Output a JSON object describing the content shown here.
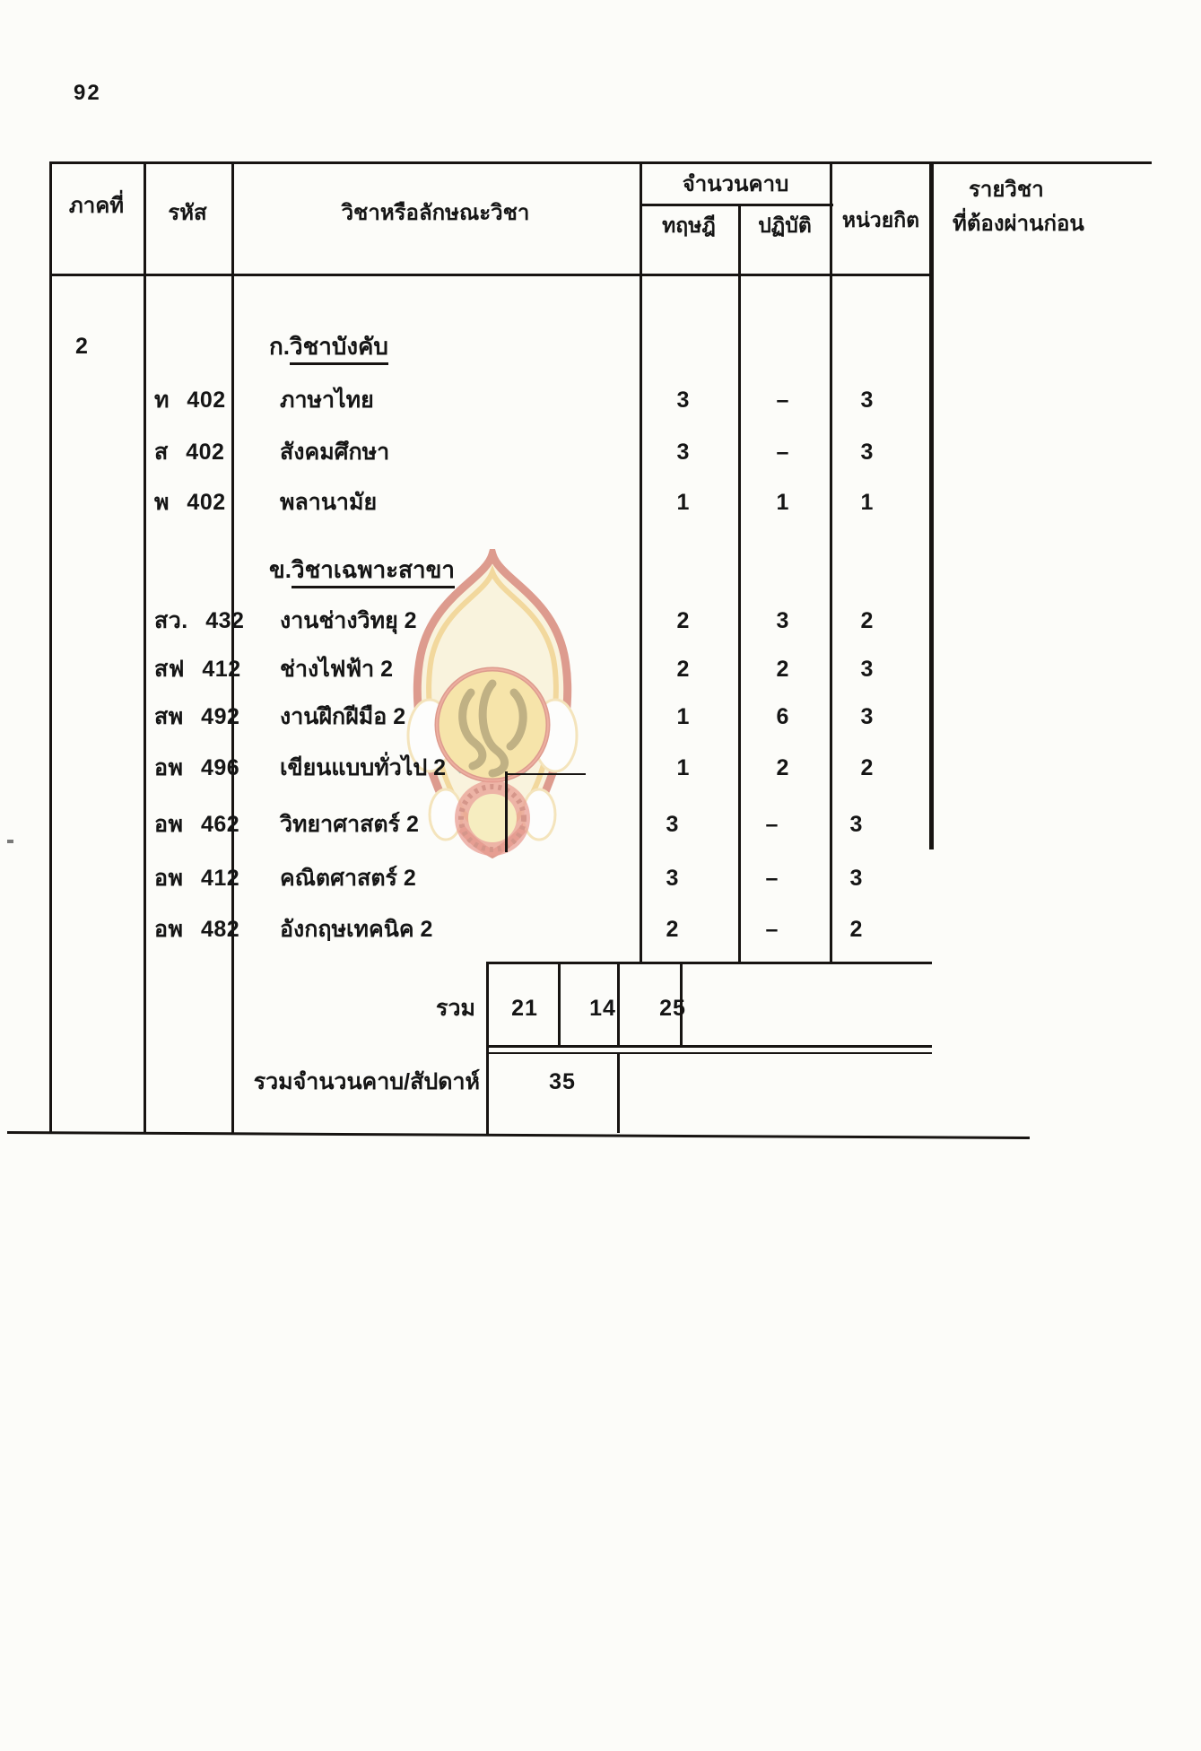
{
  "page": {
    "number": "92"
  },
  "table": {
    "headers": {
      "semester": "ภาคที่",
      "code": "รหัส",
      "subject": "วิชาหรือลักษณะวิชา",
      "periods": "จำนวนคาบ",
      "theory": "ทฤษฎี",
      "practice": "ปฏิบัติ",
      "credits": "หน่วยกิต",
      "prerequisite_line1": "รายวิชา",
      "prerequisite_line2": "ที่ต้องผ่านก่อน"
    },
    "semester_value": "2",
    "sections": [
      {
        "label": "ก.วิชาบังคับ"
      },
      {
        "label": "ข.วิชาเฉพาะสาขา"
      }
    ],
    "rows": [
      {
        "code": "ท 402",
        "subject": "ภาษาไทย",
        "theory": "3",
        "practice": "–",
        "credits": "3",
        "prerequisite": ""
      },
      {
        "code": "ส 402",
        "subject": "สังคมศึกษา",
        "theory": "3",
        "practice": "–",
        "credits": "3",
        "prerequisite": ""
      },
      {
        "code": "พ 402",
        "subject": "พลานามัย",
        "theory": "1",
        "practice": "1",
        "credits": "1",
        "prerequisite": ""
      },
      {
        "code": "สว. 432",
        "subject": "งานช่างวิทยุ 2",
        "theory": "2",
        "practice": "3",
        "credits": "2",
        "prerequisite": ""
      },
      {
        "code": "สฟ 412",
        "subject": "ช่างไฟฟ้า 2",
        "theory": "2",
        "practice": "2",
        "credits": "3",
        "prerequisite": ""
      },
      {
        "code": "สพ 492",
        "subject": "งานฝึกฝีมือ 2",
        "theory": "1",
        "practice": "6",
        "credits": "3",
        "prerequisite": ""
      },
      {
        "code": "อพ 496",
        "subject": "เขียนแบบทั่วไป 2",
        "theory": "1",
        "practice": "2",
        "credits": "2",
        "prerequisite": ""
      },
      {
        "code": "อพ 462",
        "subject": "วิทยาศาสตร์ 2",
        "theory": "3",
        "practice": "–",
        "credits": "3",
        "prerequisite": ""
      },
      {
        "code": "อพ 412",
        "subject": "คณิตศาสตร์ 2",
        "theory": "3",
        "practice": "–",
        "credits": "3",
        "prerequisite": ""
      },
      {
        "code": "อพ 482",
        "subject": "อังกฤษเทคนิค 2",
        "theory": "2",
        "practice": "–",
        "credits": "2",
        "prerequisite": ""
      }
    ],
    "totals": {
      "label": "รวม",
      "theory": "21",
      "practice": "14",
      "credits": "25"
    },
    "weekly_total": {
      "label": "รวมจำนวนคาบ/สัปดาห์",
      "value": "35"
    }
  },
  "watermark": {
    "name": "thai-ministry-of-education-seal",
    "colors": {
      "red": "#c1432e",
      "yellow": "#f2d063",
      "pale_yellow": "#f8ecc4",
      "green": "#3f9e6e",
      "white": "#ffffff"
    }
  }
}
